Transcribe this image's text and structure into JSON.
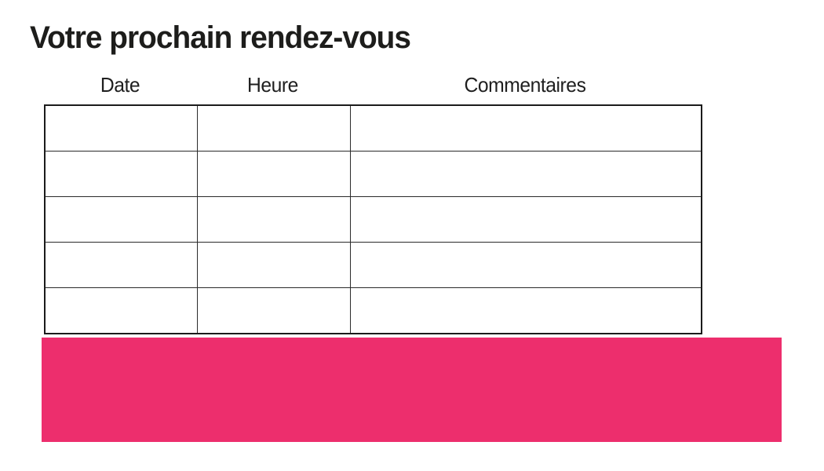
{
  "page": {
    "title": "Votre prochain rendez-vous",
    "background_color": "#ffffff"
  },
  "appointment_table": {
    "columns": [
      {
        "key": "date",
        "label": "Date"
      },
      {
        "key": "heure",
        "label": "Heure"
      },
      {
        "key": "commentaires",
        "label": "Commentaires"
      }
    ],
    "rows": [
      {
        "date": "",
        "heure": "",
        "commentaires": ""
      },
      {
        "date": "",
        "heure": "",
        "commentaires": ""
      },
      {
        "date": "",
        "heure": "",
        "commentaires": ""
      },
      {
        "date": "",
        "heure": "",
        "commentaires": ""
      },
      {
        "date": "",
        "heure": "",
        "commentaires": ""
      }
    ],
    "border_color": "#1b1b1b"
  },
  "banner": {
    "color": "#ED2E6D"
  }
}
